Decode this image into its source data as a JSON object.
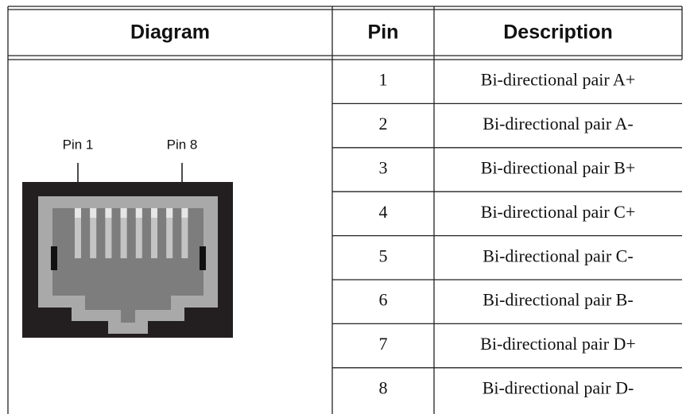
{
  "header": {
    "columns": [
      "Diagram",
      "Pin",
      "Description"
    ]
  },
  "diagram": {
    "labels": [
      "Pin 1",
      "Pin 8"
    ]
  },
  "table": {
    "rows": [
      [
        "1",
        "Bi-directional pair A+"
      ],
      [
        "2",
        "Bi-directional pair A-"
      ],
      [
        "3",
        "Bi-directional pair B+"
      ],
      [
        "4",
        "Bi-directional pair C+"
      ],
      [
        "5",
        "Bi-directional pair C-"
      ],
      [
        "6",
        "Bi-directional pair B-"
      ],
      [
        "7",
        "Bi-directional pair D+"
      ],
      [
        "8",
        "Bi-directional pair D-"
      ]
    ]
  }
}
